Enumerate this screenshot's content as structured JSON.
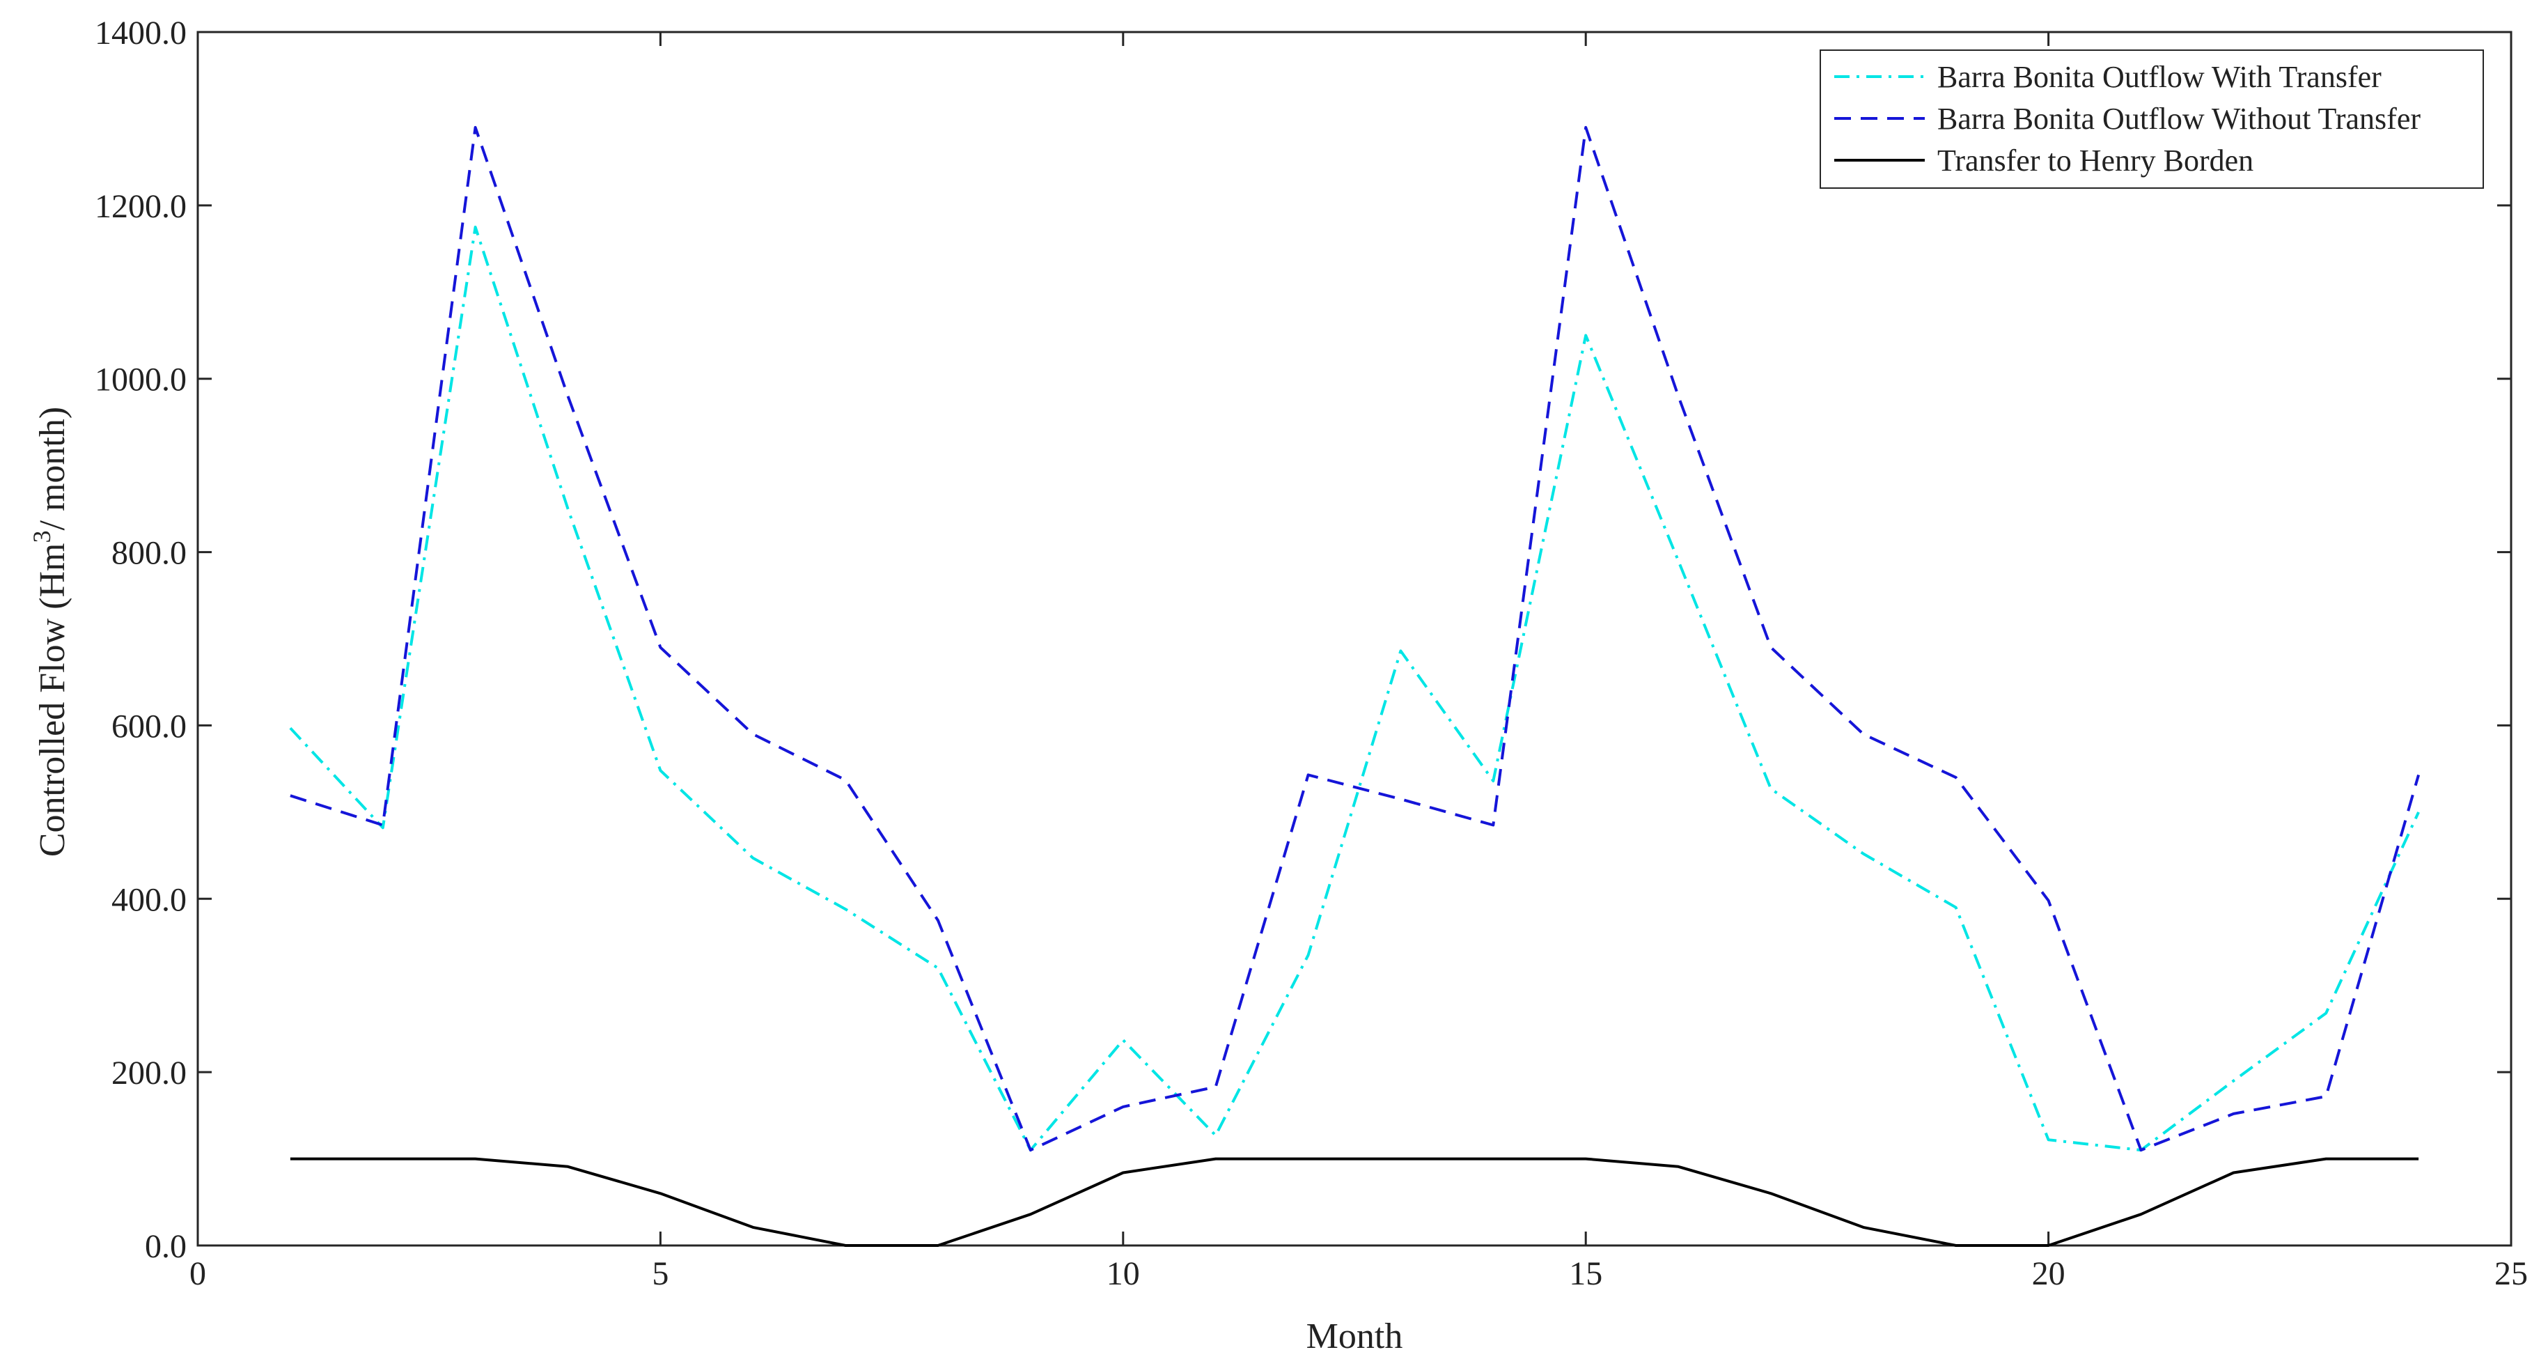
{
  "chart_data": {
    "type": "line",
    "title": "",
    "xlabel": "Month",
    "ylabel": {
      "prefix": "Controlled Flow (Hm",
      "superscript": "3",
      "suffix": "/ month)"
    },
    "xlim": [
      0,
      25
    ],
    "ylim": [
      0,
      1400
    ],
    "x_ticks": [
      0,
      5,
      10,
      15,
      20,
      25
    ],
    "y_ticks": [
      0,
      200,
      400,
      600,
      800,
      1000,
      1200,
      1400
    ],
    "y_tick_labels": [
      "0.0",
      "200.0",
      "400.0",
      "600.0",
      "800.0",
      "1000.0",
      "1200.0",
      "1400.0"
    ],
    "grid": false,
    "legend_position": "top-right",
    "x": [
      1,
      2,
      3,
      4,
      5,
      6,
      7,
      8,
      9,
      10,
      11,
      12,
      13,
      14,
      15,
      16,
      17,
      18,
      19,
      20,
      21,
      22,
      23,
      24
    ],
    "series": [
      {
        "name": "Barra Bonita Outflow With Transfer",
        "color": "#00e5e5",
        "style": "dashdot",
        "values": [
          597,
          482,
          1175,
          850,
          548,
          447,
          388,
          320,
          110,
          237,
          127,
          335,
          686,
          536,
          1050,
          790,
          527,
          452,
          390,
          122,
          110,
          190,
          268,
          500
        ]
      },
      {
        "name": "Barra Bonita Outflow Without Transfer",
        "color": "#1515d8",
        "style": "dashed",
        "values": [
          519,
          485,
          1290,
          980,
          690,
          590,
          537,
          375,
          110,
          160,
          183,
          543,
          515,
          485,
          1290,
          980,
          690,
          590,
          540,
          398,
          110,
          152,
          172,
          543
        ]
      },
      {
        "name": "Transfer to Henry Borden",
        "color": "#000000",
        "style": "solid",
        "values": [
          100,
          100,
          100,
          91,
          60,
          21,
          0,
          0,
          36,
          84,
          100,
          100,
          100,
          100,
          100,
          91,
          60,
          21,
          0,
          0,
          36,
          84,
          100,
          100
        ]
      }
    ]
  }
}
